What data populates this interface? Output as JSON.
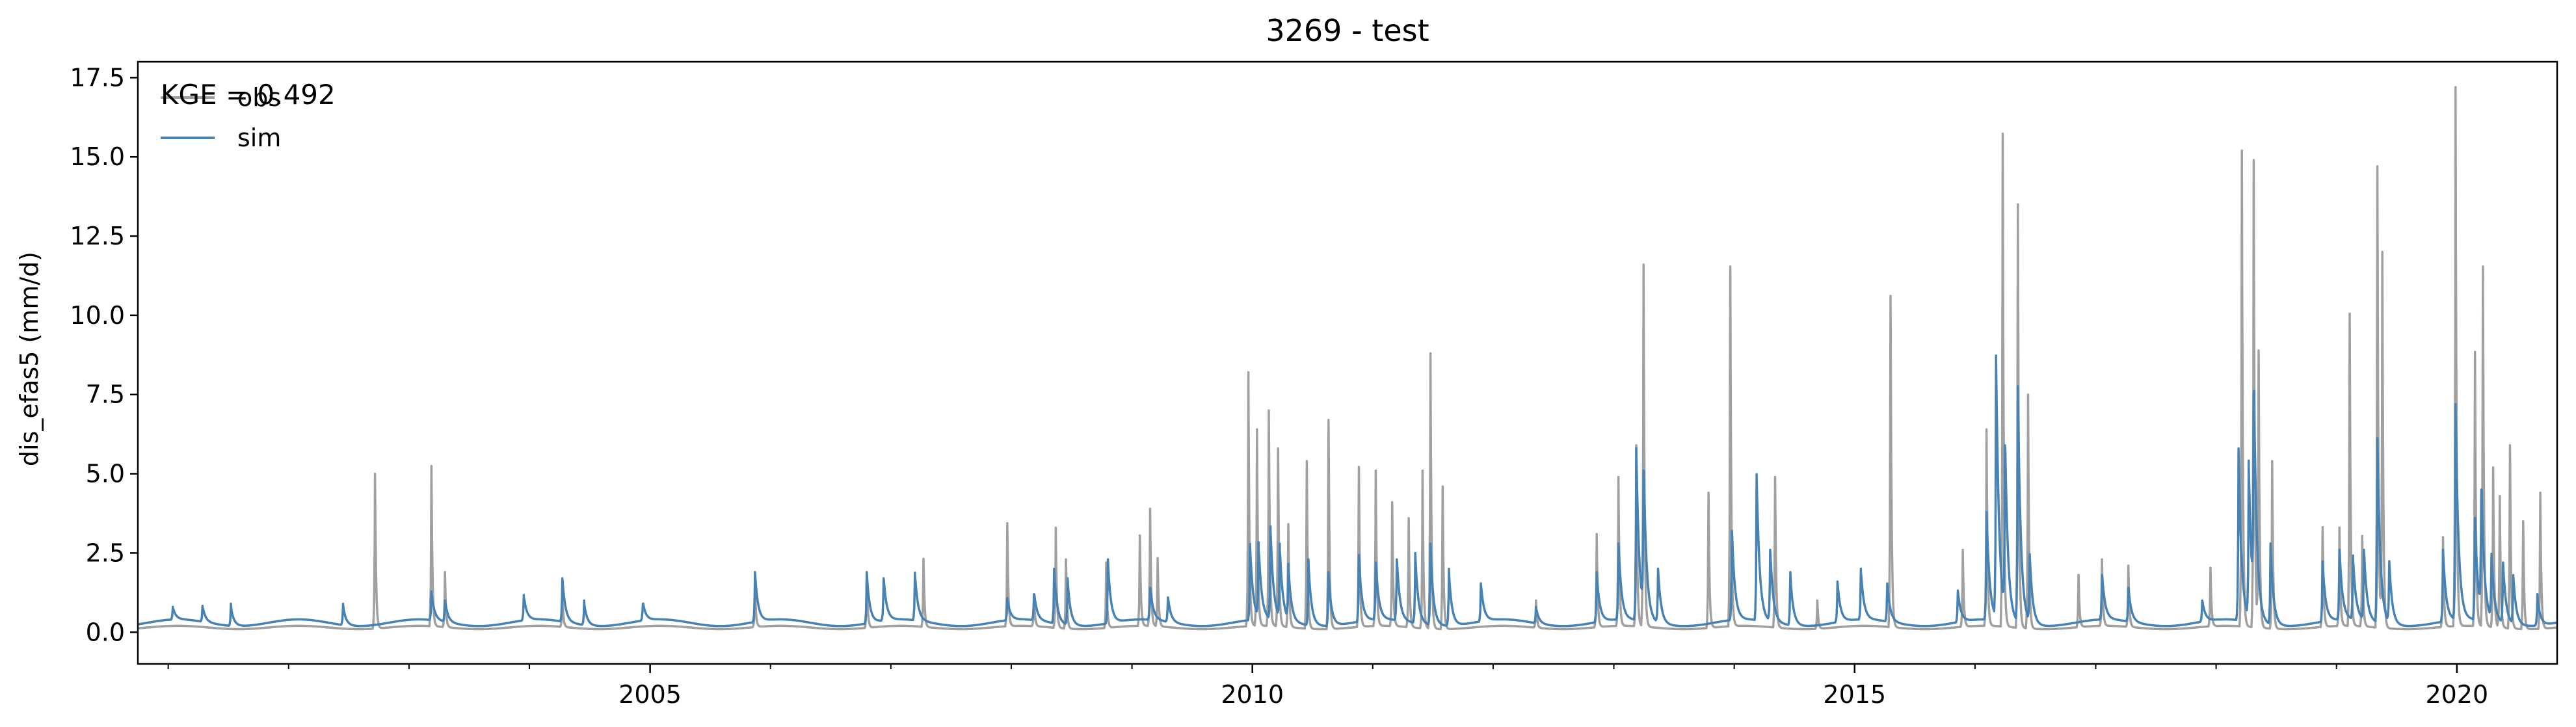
{
  "chart_data": {
    "type": "line",
    "title": "3269 - test",
    "xlabel": "",
    "ylabel": "dis_efas5 (mm/d)",
    "xlim": [
      "2000-10-01",
      "2020-10-31"
    ],
    "ylim": [
      -1.0,
      18.0
    ],
    "x_tick_labels": [
      {
        "date": "2005-01-01",
        "label": "2005"
      },
      {
        "date": "2010-01-01",
        "label": "2010"
      },
      {
        "date": "2015-01-01",
        "label": "2015"
      },
      {
        "date": "2020-01-01",
        "label": "2020"
      }
    ],
    "y_ticks": [
      0.0,
      2.5,
      5.0,
      7.5,
      10.0,
      12.5,
      15.0,
      17.5
    ],
    "y_tick_labels": [
      "0.0",
      "2.5",
      "5.0",
      "7.5",
      "10.0",
      "12.5",
      "15.0",
      "17.5"
    ],
    "grid": false,
    "legend": {
      "position": "top-left",
      "entries": [
        {
          "name": "obs",
          "color": "#a0a0a0"
        },
        {
          "name": "sim",
          "color": "#4682b4"
        }
      ]
    },
    "annotation": "KGE = 0.492",
    "baseline": {
      "obs": 0.15,
      "sim": 0.3
    },
    "series": [
      {
        "name": "obs",
        "color": "#a0a0a0",
        "peaks": [
          [
            "2002-09-20",
            5.0
          ],
          [
            "2003-03-10",
            5.2
          ],
          [
            "2003-04-20",
            1.9
          ],
          [
            "2004-04-10",
            1.2
          ],
          [
            "2005-11-15",
            1.5
          ],
          [
            "2006-10-20",
            1.8
          ],
          [
            "2007-04-10",
            2.3
          ],
          [
            "2007-12-20",
            3.4
          ],
          [
            "2008-03-10",
            1.1
          ],
          [
            "2008-05-15",
            3.3
          ],
          [
            "2008-06-15",
            2.3
          ],
          [
            "2008-10-15",
            2.2
          ],
          [
            "2009-01-25",
            3.0
          ],
          [
            "2009-02-25",
            3.9
          ],
          [
            "2009-03-20",
            2.3
          ],
          [
            "2009-12-20",
            8.2
          ],
          [
            "2010-01-15",
            6.4
          ],
          [
            "2010-02-20",
            7.0
          ],
          [
            "2010-03-20",
            5.8
          ],
          [
            "2010-04-20",
            3.4
          ],
          [
            "2010-06-15",
            5.4
          ],
          [
            "2010-08-20",
            6.7
          ],
          [
            "2010-11-20",
            5.2
          ],
          [
            "2011-01-10",
            5.1
          ],
          [
            "2011-03-01",
            4.1
          ],
          [
            "2011-04-20",
            3.6
          ],
          [
            "2011-06-01",
            5.1
          ],
          [
            "2011-06-25",
            8.8
          ],
          [
            "2011-08-01",
            4.6
          ],
          [
            "2012-05-10",
            1.0
          ],
          [
            "2012-11-10",
            3.1
          ],
          [
            "2013-01-15",
            4.9
          ],
          [
            "2013-03-10",
            5.9
          ],
          [
            "2013-04-01",
            11.6
          ],
          [
            "2013-10-15",
            4.4
          ],
          [
            "2013-12-20",
            11.5
          ],
          [
            "2014-05-05",
            4.9
          ],
          [
            "2014-09-10",
            1.0
          ],
          [
            "2015-04-20",
            10.6
          ],
          [
            "2015-11-25",
            2.6
          ],
          [
            "2016-02-05",
            6.4
          ],
          [
            "2016-03-25",
            15.7
          ],
          [
            "2016-05-10",
            13.5
          ],
          [
            "2016-06-10",
            7.5
          ],
          [
            "2016-11-10",
            1.8
          ],
          [
            "2017-01-20",
            2.3
          ],
          [
            "2017-04-10",
            2.1
          ],
          [
            "2017-12-15",
            2.0
          ],
          [
            "2018-03-20",
            15.2
          ],
          [
            "2018-04-25",
            14.9
          ],
          [
            "2018-05-10",
            8.8
          ],
          [
            "2018-06-20",
            5.4
          ],
          [
            "2018-11-20",
            3.3
          ],
          [
            "2019-01-10",
            3.3
          ],
          [
            "2019-02-10",
            10.0
          ],
          [
            "2019-03-20",
            3.0
          ],
          [
            "2019-05-05",
            14.7
          ],
          [
            "2019-05-20",
            12.0
          ],
          [
            "2019-11-20",
            3.0
          ],
          [
            "2019-12-28",
            17.2
          ],
          [
            "2020-02-25",
            8.8
          ],
          [
            "2020-03-20",
            11.5
          ],
          [
            "2020-04-20",
            5.2
          ],
          [
            "2020-05-10",
            4.3
          ],
          [
            "2020-06-10",
            5.9
          ],
          [
            "2020-07-20",
            3.5
          ],
          [
            "2020-09-10",
            4.4
          ]
        ]
      },
      {
        "name": "sim",
        "color": "#4682b4",
        "peaks": [
          [
            "2001-01-15",
            0.7
          ],
          [
            "2001-04-15",
            0.8
          ],
          [
            "2001-07-10",
            0.9
          ],
          [
            "2002-06-15",
            0.9
          ],
          [
            "2003-03-10",
            1.2
          ],
          [
            "2003-04-20",
            1.0
          ],
          [
            "2003-12-15",
            1.1
          ],
          [
            "2004-04-10",
            1.7
          ],
          [
            "2004-06-15",
            1.0
          ],
          [
            "2004-12-10",
            0.9
          ],
          [
            "2005-11-15",
            1.9
          ],
          [
            "2006-10-20",
            1.9
          ],
          [
            "2006-12-10",
            1.7
          ],
          [
            "2007-03-15",
            1.8
          ],
          [
            "2007-12-20",
            1.0
          ],
          [
            "2008-03-10",
            1.2
          ],
          [
            "2008-05-10",
            2.0
          ],
          [
            "2008-06-20",
            1.7
          ],
          [
            "2008-10-20",
            2.3
          ],
          [
            "2009-02-25",
            1.4
          ],
          [
            "2009-04-20",
            1.1
          ],
          [
            "2009-12-25",
            2.7
          ],
          [
            "2010-01-20",
            2.6
          ],
          [
            "2010-02-25",
            3.2
          ],
          [
            "2010-03-25",
            2.6
          ],
          [
            "2010-04-20",
            2.0
          ],
          [
            "2010-06-20",
            2.3
          ],
          [
            "2010-08-20",
            1.9
          ],
          [
            "2010-11-20",
            2.4
          ],
          [
            "2011-01-10",
            2.2
          ],
          [
            "2011-03-15",
            2.3
          ],
          [
            "2011-05-10",
            2.5
          ],
          [
            "2011-06-25",
            2.8
          ],
          [
            "2011-08-20",
            2.0
          ],
          [
            "2011-11-25",
            1.5
          ],
          [
            "2012-05-10",
            0.8
          ],
          [
            "2012-11-10",
            1.9
          ],
          [
            "2013-01-15",
            2.8
          ],
          [
            "2013-03-10",
            5.8
          ],
          [
            "2013-04-01",
            5.1
          ],
          [
            "2013-05-15",
            2.0
          ],
          [
            "2013-12-25",
            3.2
          ],
          [
            "2014-03-10",
            4.9
          ],
          [
            "2014-04-20",
            2.6
          ],
          [
            "2014-06-20",
            1.9
          ],
          [
            "2014-11-10",
            1.6
          ],
          [
            "2015-01-20",
            1.9
          ],
          [
            "2015-04-10",
            1.5
          ],
          [
            "2015-11-10",
            1.3
          ],
          [
            "2016-02-05",
            3.8
          ],
          [
            "2016-03-05",
            8.5
          ],
          [
            "2016-04-01",
            5.9
          ],
          [
            "2016-05-10",
            7.7
          ],
          [
            "2016-06-15",
            2.4
          ],
          [
            "2017-01-20",
            1.8
          ],
          [
            "2017-04-10",
            1.4
          ],
          [
            "2017-11-20",
            1.0
          ],
          [
            "2018-03-10",
            5.8
          ],
          [
            "2018-04-10",
            5.2
          ],
          [
            "2018-04-25",
            7.5
          ],
          [
            "2018-06-15",
            2.8
          ],
          [
            "2018-11-20",
            2.2
          ],
          [
            "2019-01-10",
            2.6
          ],
          [
            "2019-02-20",
            2.3
          ],
          [
            "2019-03-25",
            2.6
          ],
          [
            "2019-05-05",
            6.1
          ],
          [
            "2019-06-10",
            2.2
          ],
          [
            "2019-11-20",
            2.6
          ],
          [
            "2019-12-28",
            7.2
          ],
          [
            "2020-02-25",
            3.5
          ],
          [
            "2020-03-15",
            4.5
          ],
          [
            "2020-04-15",
            2.3
          ],
          [
            "2020-05-20",
            2.2
          ],
          [
            "2020-06-20",
            1.8
          ],
          [
            "2020-09-01",
            1.2
          ]
        ]
      }
    ]
  }
}
